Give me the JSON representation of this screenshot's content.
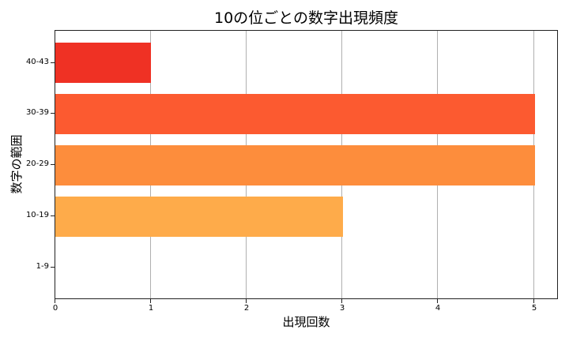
{
  "chart_data": {
    "type": "bar",
    "orientation": "horizontal",
    "title": "10の位ごとの数字出現頻度",
    "xlabel": "出現回数",
    "ylabel": "数字の範囲",
    "categories": [
      "1-9",
      "10-19",
      "20-29",
      "30-39",
      "40-43"
    ],
    "values": [
      0,
      3,
      5,
      5,
      1
    ],
    "colors": [
      "#ffc04d",
      "#feab4a",
      "#fd8d3c",
      "#fc5a30",
      "#ef3124"
    ],
    "xlim": [
      0,
      5.25
    ],
    "xticks": [
      0,
      1,
      2,
      3,
      4,
      5
    ],
    "grid": {
      "x": true,
      "y": false
    },
    "legend": null
  },
  "labels": {
    "title": "10の位ごとの数字出現頻度",
    "xlabel": "出現回数",
    "ylabel": "数字の範囲",
    "xticks": [
      "0",
      "1",
      "2",
      "3",
      "4",
      "5"
    ],
    "yticks": [
      "1-9",
      "10-19",
      "20-29",
      "30-39",
      "40-43"
    ]
  }
}
